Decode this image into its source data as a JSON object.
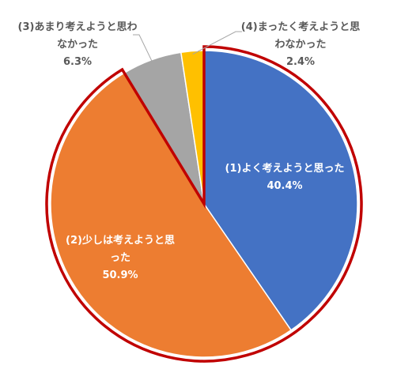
{
  "chart_data": {
    "type": "pie",
    "categories": [
      "(1)よく考えようと思った",
      "(2)少しは考えようと思った",
      "(3)あまり考えようと思わなかった",
      "(4)まったく考えようと思わなかった"
    ],
    "values": [
      40.4,
      50.9,
      6.3,
      2.4
    ],
    "value_labels": [
      "40.4%",
      "50.9%",
      "6.3%",
      "2.4%"
    ],
    "colors": [
      "#4472c4",
      "#ed7d31",
      "#a5a5a5",
      "#ffc000"
    ]
  }
}
